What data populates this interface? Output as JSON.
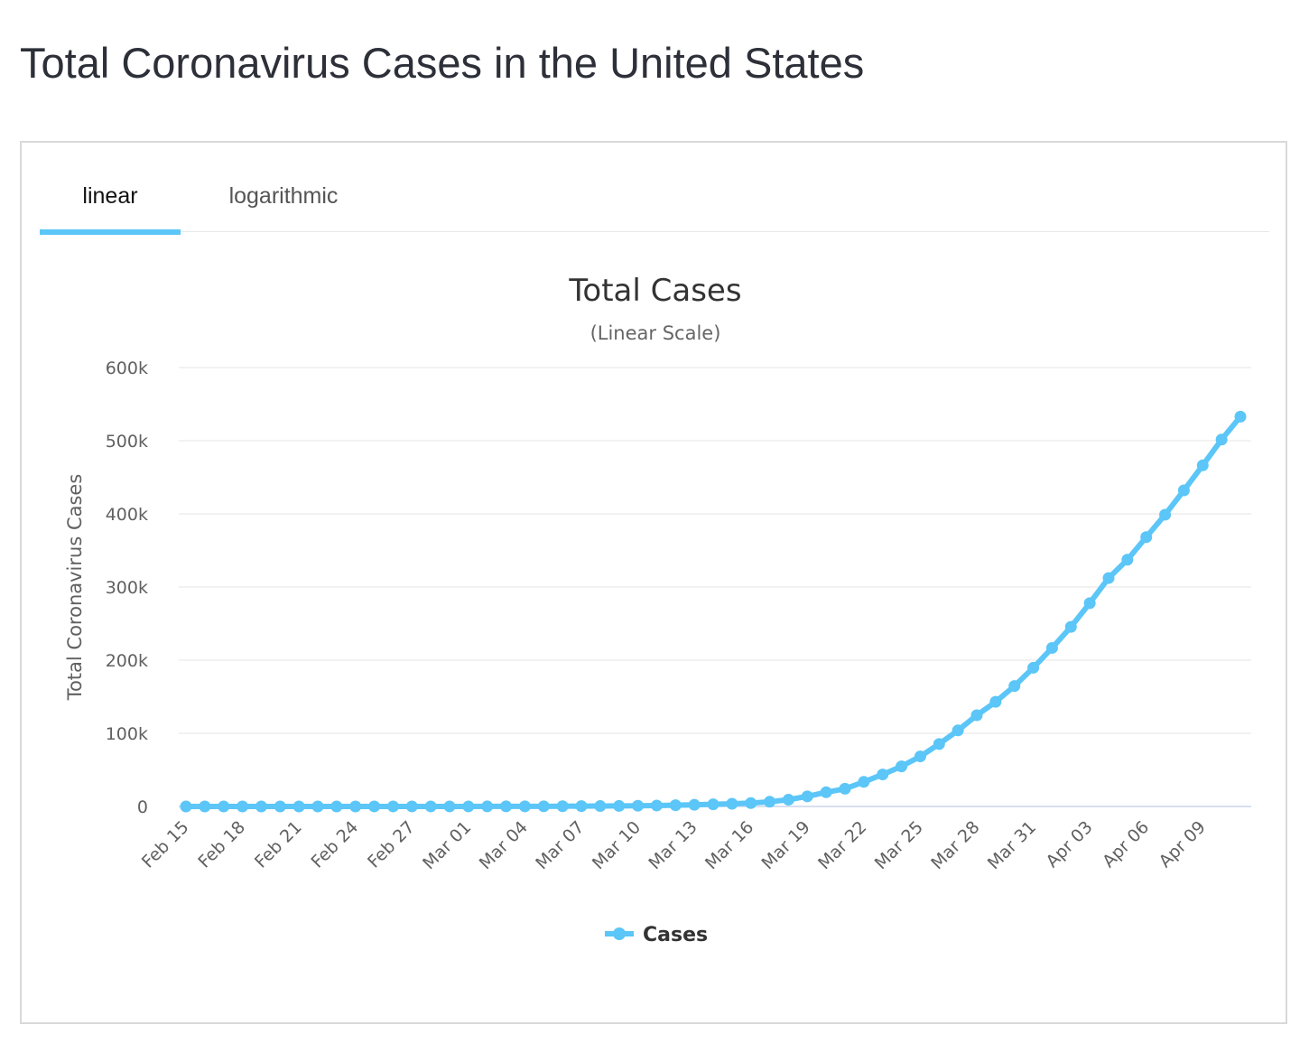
{
  "page": {
    "title": "Total Coronavirus Cases in the United States"
  },
  "tabs": [
    {
      "label": "linear",
      "active": true
    },
    {
      "label": "logarithmic",
      "active": false
    }
  ],
  "colors": {
    "series": "#5bc6f7",
    "grid": "#e6e6e6",
    "text": "#606060",
    "title": "#333333"
  },
  "chart_data": {
    "type": "line",
    "title": "Total Cases",
    "subtitle": "(Linear Scale)",
    "ylabel": "Total Coronavirus Cases",
    "xlabel": "",
    "ylim": [
      0,
      600000
    ],
    "yticks": [
      0,
      100000,
      200000,
      300000,
      400000,
      500000,
      600000
    ],
    "ytick_labels": [
      "0",
      "100k",
      "200k",
      "300k",
      "400k",
      "500k",
      "600k"
    ],
    "x_tick_labels": [
      "Feb 15",
      "Feb 18",
      "Feb 21",
      "Feb 24",
      "Feb 27",
      "Mar 01",
      "Mar 04",
      "Mar 07",
      "Mar 10",
      "Mar 13",
      "Mar 16",
      "Mar 19",
      "Mar 22",
      "Mar 25",
      "Mar 28",
      "Mar 31",
      "Apr 03",
      "Apr 06",
      "Apr 09"
    ],
    "grid": true,
    "legend": "bottom-center",
    "categories": [
      "Feb 15",
      "Feb 16",
      "Feb 17",
      "Feb 18",
      "Feb 19",
      "Feb 20",
      "Feb 21",
      "Feb 22",
      "Feb 23",
      "Feb 24",
      "Feb 25",
      "Feb 26",
      "Feb 27",
      "Feb 28",
      "Feb 29",
      "Mar 01",
      "Mar 02",
      "Mar 03",
      "Mar 04",
      "Mar 05",
      "Mar 06",
      "Mar 07",
      "Mar 08",
      "Mar 09",
      "Mar 10",
      "Mar 11",
      "Mar 12",
      "Mar 13",
      "Mar 14",
      "Mar 15",
      "Mar 16",
      "Mar 17",
      "Mar 18",
      "Mar 19",
      "Mar 20",
      "Mar 21",
      "Mar 22",
      "Mar 23",
      "Mar 24",
      "Mar 25",
      "Mar 26",
      "Mar 27",
      "Mar 28",
      "Mar 29",
      "Mar 30",
      "Mar 31",
      "Apr 01",
      "Apr 02",
      "Apr 03",
      "Apr 04",
      "Apr 05",
      "Apr 06",
      "Apr 07",
      "Apr 08",
      "Apr 09",
      "Apr 10",
      "Apr 11"
    ],
    "series": [
      {
        "name": "Cases",
        "values": [
          15,
          15,
          15,
          15,
          15,
          15,
          15,
          35,
          35,
          35,
          53,
          57,
          60,
          60,
          68,
          75,
          100,
          124,
          158,
          221,
          319,
          435,
          541,
          704,
          994,
          1301,
          1697,
          2247,
          2943,
          3680,
          4663,
          6411,
          9259,
          13789,
          19383,
          24207,
          33566,
          43734,
          54823,
          68440,
          85356,
          103942,
          124665,
          143025,
          164620,
          189618,
          216722,
          245540,
          277965,
          312237,
          337310,
          368196,
          398809,
          432132,
          466299,
          501560,
          532879
        ]
      }
    ]
  }
}
